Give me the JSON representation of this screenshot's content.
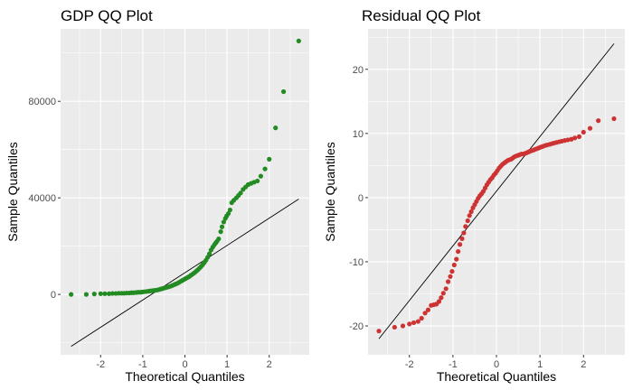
{
  "chart_data": [
    {
      "type": "scatter",
      "title": "GDP QQ Plot",
      "xlabel": "Theoretical Quantiles",
      "ylabel": "Sample Quantiles",
      "xlim": [
        -2.95,
        2.95
      ],
      "ylim": [
        -25000,
        110000
      ],
      "xticks": [
        -2,
        -1,
        0,
        1,
        2
      ],
      "xtick_labels": [
        "-2",
        "-1",
        "0",
        "1",
        "2"
      ],
      "yticks": [
        0,
        40000,
        80000
      ],
      "ytick_labels": [
        "0",
        "40000",
        "80000"
      ],
      "grid": true,
      "legend": "none",
      "colors": {
        "points": "#228B22",
        "line": "#000000",
        "panel": "#EBEBEB",
        "grid": "#FFFFFF"
      },
      "ref_line": {
        "x": [
          -2.7,
          2.7
        ],
        "y": [
          -21500,
          39500
        ]
      },
      "points": {
        "x": [
          -2.7,
          -2.34,
          -2.15,
          -2.0,
          -1.9,
          -1.8,
          -1.72,
          -1.64,
          -1.57,
          -1.5,
          -1.44,
          -1.38,
          -1.32,
          -1.27,
          -1.22,
          -1.16,
          -1.11,
          -1.06,
          -1.02,
          -0.97,
          -0.92,
          -0.88,
          -0.84,
          -0.79,
          -0.75,
          -0.71,
          -0.66,
          -0.62,
          -0.58,
          -0.54,
          -0.5,
          -0.46,
          -0.42,
          -0.38,
          -0.34,
          -0.3,
          -0.26,
          -0.22,
          -0.18,
          -0.14,
          -0.1,
          -0.06,
          -0.02,
          0.02,
          0.06,
          0.1,
          0.14,
          0.18,
          0.22,
          0.26,
          0.3,
          0.34,
          0.38,
          0.42,
          0.46,
          0.5,
          0.54,
          0.58,
          0.62,
          0.66,
          0.7,
          0.73,
          0.76,
          0.8,
          0.85,
          0.88,
          0.92,
          0.96,
          0.99,
          1.03,
          1.07,
          1.11,
          1.16,
          1.22,
          1.27,
          1.32,
          1.38,
          1.44,
          1.5,
          1.57,
          1.64,
          1.72,
          1.8,
          1.9,
          2.0,
          2.15,
          2.34,
          2.7
        ],
        "y": [
          0,
          0,
          200,
          300,
          300,
          300,
          400,
          400,
          500,
          500,
          500,
          600,
          600,
          700,
          700,
          800,
          900,
          900,
          1000,
          1100,
          1200,
          1300,
          1400,
          1500,
          1600,
          1700,
          1800,
          2000,
          2200,
          2400,
          2600,
          2800,
          3000,
          3200,
          3400,
          3700,
          4000,
          4300,
          4600,
          5000,
          5400,
          5800,
          6200,
          6600,
          7000,
          7400,
          7900,
          8400,
          8900,
          9500,
          10100,
          10800,
          11500,
          12300,
          13200,
          14200,
          15400,
          16800,
          18400,
          19600,
          20600,
          21300,
          22000,
          23000,
          26000,
          28000,
          30000,
          31500,
          32500,
          33500,
          35000,
          38000,
          39000,
          40000,
          41000,
          42000,
          43500,
          44500,
          45500,
          46000,
          46500,
          47000,
          49000,
          52000,
          56000,
          69000,
          84000,
          105000
        ]
      }
    },
    {
      "type": "scatter",
      "title": "Residual QQ Plot",
      "xlabel": "Theoretical Quantiles",
      "ylabel": "Sample Quantiles",
      "xlim": [
        -2.95,
        2.95
      ],
      "ylim": [
        -24.5,
        26.3
      ],
      "xticks": [
        -2,
        -1,
        0,
        1,
        2
      ],
      "xtick_labels": [
        "-2",
        "-1",
        "0",
        "1",
        "2"
      ],
      "yticks": [
        -20,
        -10,
        0,
        10,
        20
      ],
      "ytick_labels": [
        "-20",
        "-10",
        "0",
        "10",
        "20"
      ],
      "grid": true,
      "legend": "none",
      "colors": {
        "points": "#CD3333",
        "line": "#000000",
        "panel": "#EBEBEB",
        "grid": "#FFFFFF"
      },
      "ref_line": {
        "x": [
          -2.7,
          2.7
        ],
        "y": [
          -22,
          24
        ]
      },
      "points": {
        "x": [
          -2.7,
          -2.34,
          -2.15,
          -2.0,
          -1.9,
          -1.8,
          -1.72,
          -1.64,
          -1.57,
          -1.5,
          -1.44,
          -1.38,
          -1.32,
          -1.27,
          -1.22,
          -1.16,
          -1.11,
          -1.06,
          -1.02,
          -0.97,
          -0.92,
          -0.88,
          -0.84,
          -0.79,
          -0.75,
          -0.71,
          -0.66,
          -0.62,
          -0.58,
          -0.54,
          -0.5,
          -0.46,
          -0.42,
          -0.38,
          -0.34,
          -0.3,
          -0.26,
          -0.22,
          -0.18,
          -0.14,
          -0.1,
          -0.06,
          -0.02,
          0.02,
          0.06,
          0.1,
          0.14,
          0.18,
          0.22,
          0.26,
          0.3,
          0.34,
          0.38,
          0.42,
          0.46,
          0.5,
          0.54,
          0.58,
          0.62,
          0.66,
          0.7,
          0.73,
          0.76,
          0.8,
          0.85,
          0.88,
          0.92,
          0.96,
          0.99,
          1.03,
          1.07,
          1.11,
          1.16,
          1.22,
          1.27,
          1.32,
          1.38,
          1.44,
          1.5,
          1.57,
          1.64,
          1.72,
          1.8,
          1.9,
          2.0,
          2.15,
          2.34,
          2.7
        ],
        "y": [
          -20.8,
          -20.2,
          -20.0,
          -19.7,
          -19.5,
          -19.3,
          -18.8,
          -18.0,
          -17.5,
          -16.8,
          -16.7,
          -16.6,
          -16.2,
          -15.6,
          -14.9,
          -14.2,
          -13.1,
          -12.3,
          -11.5,
          -10.5,
          -9.6,
          -8.4,
          -7.3,
          -6.4,
          -5.5,
          -4.5,
          -3.6,
          -2.8,
          -2.2,
          -1.6,
          -1.1,
          -0.6,
          -0.1,
          0.3,
          0.6,
          1.0,
          1.5,
          2.0,
          2.4,
          2.8,
          3.1,
          3.5,
          3.8,
          4.2,
          4.6,
          4.9,
          5.2,
          5.4,
          5.6,
          5.8,
          5.9,
          6.0,
          6.2,
          6.4,
          6.5,
          6.6,
          6.7,
          6.8,
          6.8,
          6.9,
          7.0,
          7.1,
          7.2,
          7.3,
          7.4,
          7.5,
          7.6,
          7.7,
          7.8,
          7.9,
          8.0,
          8.1,
          8.2,
          8.3,
          8.4,
          8.5,
          8.6,
          8.7,
          8.8,
          8.9,
          9.0,
          9.1,
          9.3,
          9.5,
          10.2,
          10.8,
          12.0,
          12.3
        ]
      }
    }
  ]
}
